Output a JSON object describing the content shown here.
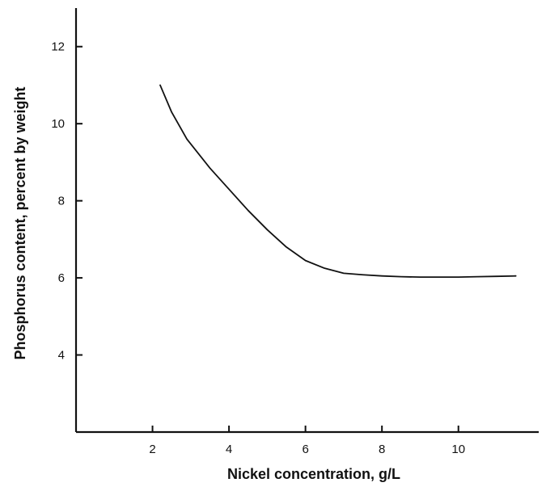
{
  "chart_data": {
    "type": "line",
    "title": "",
    "xlabel": "Nickel concentration, g/L",
    "ylabel": "Phosphorus content, percent by weight",
    "xlim": [
      0,
      12.1
    ],
    "ylim": [
      2,
      13
    ],
    "x_ticks": [
      2,
      4,
      6,
      8,
      10
    ],
    "y_ticks": [
      4,
      6,
      8,
      10,
      12
    ],
    "x_tick_labels": [
      "2",
      "4",
      "6",
      "8",
      "10"
    ],
    "y_tick_labels": [
      "4",
      "6",
      "8",
      "10",
      "12"
    ],
    "grid": false,
    "legend": "none",
    "series": [
      {
        "x": [
          2.2,
          2.5,
          2.9,
          3.5,
          4.0,
          4.5,
          5.0,
          5.5,
          6.0,
          6.5,
          7.0,
          7.5,
          8.0,
          8.5,
          9.0,
          9.5,
          10.0,
          10.5,
          11.0,
          11.5
        ],
        "values": [
          11.0,
          10.3,
          9.6,
          8.85,
          8.3,
          7.75,
          7.25,
          6.8,
          6.45,
          6.25,
          6.12,
          6.08,
          6.05,
          6.03,
          6.02,
          6.02,
          6.02,
          6.03,
          6.04,
          6.05
        ],
        "color": "#111111"
      }
    ]
  }
}
